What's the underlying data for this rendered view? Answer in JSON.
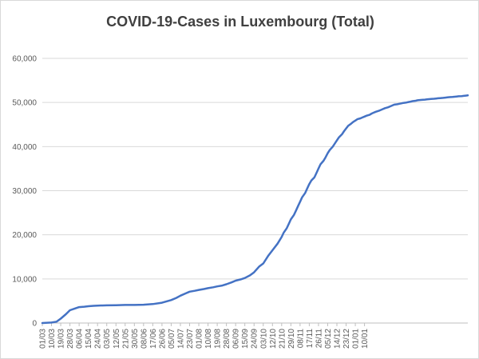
{
  "chart_data": {
    "type": "line",
    "title": "COVID-19-Cases in Luxembourg (Total)",
    "xlabel": "",
    "ylabel": "",
    "ylim": [
      0,
      60000
    ],
    "yticks": [
      0,
      10000,
      20000,
      30000,
      40000,
      50000,
      60000
    ],
    "ytick_labels": [
      "0",
      "10,000",
      "20,000",
      "30,000",
      "40,000",
      "50,000",
      "60,000"
    ],
    "xtick_labels": [
      "01/03",
      "10/03",
      "19/03",
      "28/03",
      "06/04",
      "15/04",
      "24/04",
      "03/05",
      "12/05",
      "21/05",
      "30/05",
      "08/06",
      "17/06",
      "26/06",
      "05/07",
      "14/07",
      "23/07",
      "01/08",
      "10/08",
      "19/08",
      "28/08",
      "06/09",
      "15/09",
      "24/09",
      "03/10",
      "12/10",
      "21/10",
      "29/10",
      "08/11",
      "17/11",
      "26/11",
      "05/12",
      "14/12",
      "23/12",
      "01/01",
      "10/01"
    ],
    "grid": true,
    "legend": "none",
    "series": [
      {
        "color": "#4472c4",
        "x": [
          0,
          9,
          14,
          18,
          23,
          27,
          32,
          36,
          41,
          45,
          50,
          54,
          63,
          72,
          81,
          90,
          99,
          108,
          117,
          126,
          131,
          135,
          140,
          144,
          149,
          153,
          158,
          162,
          167,
          171,
          176,
          180,
          185,
          189,
          194,
          198,
          203,
          207,
          212,
          216,
          221,
          225,
          230,
          234,
          236,
          239,
          241,
          243,
          246,
          248,
          250,
          252,
          254,
          257,
          259,
          261,
          263,
          266,
          268,
          270,
          272,
          275,
          277,
          279,
          281,
          284,
          286,
          288,
          290,
          293,
          295,
          297,
          299,
          302,
          304,
          306,
          308,
          311,
          313,
          315,
          317,
          320,
          322,
          324,
          326,
          329,
          331,
          333,
          335,
          338,
          340,
          342,
          344,
          347,
          349,
          351,
          353,
          356,
          358,
          360,
          362,
          365,
          367,
          369,
          371,
          374,
          376,
          378,
          380,
          383,
          385,
          387,
          389,
          392,
          394,
          396,
          398,
          401,
          403,
          405,
          407,
          410,
          412,
          414,
          416
        ],
        "values": [
          0,
          100,
          300,
          1000,
          2000,
          2900,
          3300,
          3600,
          3700,
          3800,
          3900,
          3950,
          4000,
          4050,
          4100,
          4100,
          4150,
          4300,
          4600,
          5200,
          5700,
          6200,
          6700,
          7100,
          7300,
          7500,
          7700,
          7900,
          8100,
          8300,
          8500,
          8800,
          9200,
          9600,
          9900,
          10200,
          10800,
          11500,
          12800,
          13500,
          15300,
          16500,
          18000,
          19500,
          20500,
          21500,
          22500,
          23500,
          24500,
          25500,
          26500,
          27500,
          28500,
          29500,
          30500,
          31500,
          32300,
          33000,
          34000,
          35000,
          36000,
          36800,
          37600,
          38500,
          39200,
          40000,
          40700,
          41400,
          42100,
          42800,
          43500,
          44100,
          44700,
          45200,
          45600,
          45900,
          46200,
          46400,
          46600,
          46800,
          47000,
          47200,
          47500,
          47700,
          47900,
          48100,
          48300,
          48500,
          48700,
          48900,
          49100,
          49300,
          49500,
          49600,
          49700,
          49800,
          49900,
          50000,
          50100,
          50200,
          50300,
          50400,
          50500,
          50550,
          50600,
          50650,
          50700,
          50750,
          50800,
          50850,
          50900,
          50950,
          51000,
          51050,
          51100,
          51150,
          51200,
          51250,
          51300,
          51350,
          51400,
          51450,
          51500,
          51550,
          51600
        ]
      }
    ]
  }
}
